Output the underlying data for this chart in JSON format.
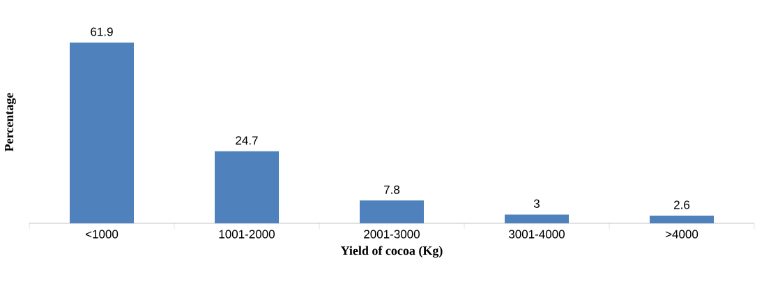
{
  "chart_data": {
    "type": "bar",
    "xlabel": "Yield of cocoa (Kg)",
    "ylabel": "Percentage",
    "categories": [
      "<1000",
      "1001-2000",
      "2001-3000",
      "3001-4000",
      ">4000"
    ],
    "values": [
      61.9,
      24.7,
      7.8,
      3,
      2.6
    ],
    "color": "#4f81bd",
    "data_labels": true
  }
}
